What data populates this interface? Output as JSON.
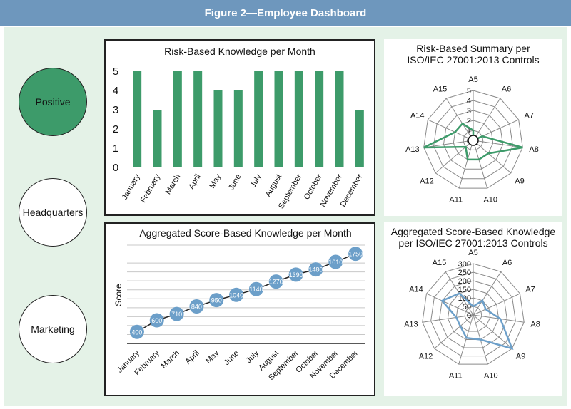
{
  "figure_title": "Figure 2—Employee Dashboard",
  "categories_menu": [
    "Positive",
    "Headquarters",
    "Marketing"
  ],
  "colors": {
    "bar": "#3d9b6a",
    "line": "#6c9fc9",
    "header": "#6e97bd",
    "frame": "#e4f2e7"
  },
  "chart_data": [
    {
      "type": "bar",
      "title": "Risk-Based Knowledge per Month",
      "categories": [
        "January",
        "February",
        "March",
        "April",
        "May",
        "June",
        "July",
        "August",
        "September",
        "October",
        "November",
        "December"
      ],
      "values": [
        5,
        3,
        5,
        5,
        4,
        4,
        5,
        5,
        5,
        5,
        5,
        3
      ],
      "ylim": [
        0,
        5
      ],
      "yticks": [
        "0",
        "1",
        "2",
        "3",
        "4",
        "5"
      ],
      "grid": false
    },
    {
      "type": "line",
      "title": "Aggregated Score-Based Knowledge per Month",
      "ylabel": "Score",
      "categories": [
        "January",
        "February",
        "March",
        "April",
        "May",
        "June",
        "July",
        "August",
        "September",
        "October",
        "November",
        "December"
      ],
      "values": [
        400,
        600,
        710,
        840,
        950,
        1040,
        1140,
        1270,
        1390,
        1480,
        1610,
        1750
      ],
      "value_labels": [
        "400",
        "600",
        "710",
        "840",
        "950",
        "1040",
        "1140",
        "1270",
        "1390",
        "1480",
        "1610",
        "1750"
      ],
      "ylim": [
        200,
        1900
      ],
      "grid": true
    },
    {
      "type": "radar",
      "title_lines": [
        "Risk-Based Summary per",
        "ISO/IEC 27001:2013 Controls"
      ],
      "axes": [
        "A5",
        "A6",
        "A7",
        "A8",
        "A9",
        "A10",
        "A11",
        "A12",
        "A13",
        "A14",
        "A15"
      ],
      "values": [
        1,
        0,
        1,
        5,
        2,
        2,
        2,
        1,
        5,
        2,
        2
      ],
      "rmax": 5,
      "rings": [
        "0",
        "1",
        "2",
        "3",
        "4",
        "5"
      ]
    },
    {
      "type": "radar",
      "title_lines": [
        "Aggregated Score-Based Knowledge",
        "per ISO/IEC 27001:2013 Controls"
      ],
      "axes": [
        "A5",
        "A6",
        "A7",
        "A8",
        "A9",
        "A10",
        "A11",
        "A12",
        "A13",
        "A14",
        "A15"
      ],
      "values": [
        50,
        100,
        80,
        160,
        300,
        150,
        140,
        100,
        100,
        200,
        150
      ],
      "rmax": 300,
      "rings": [
        "0",
        "50",
        "100",
        "150",
        "200",
        "250",
        "300"
      ]
    }
  ]
}
